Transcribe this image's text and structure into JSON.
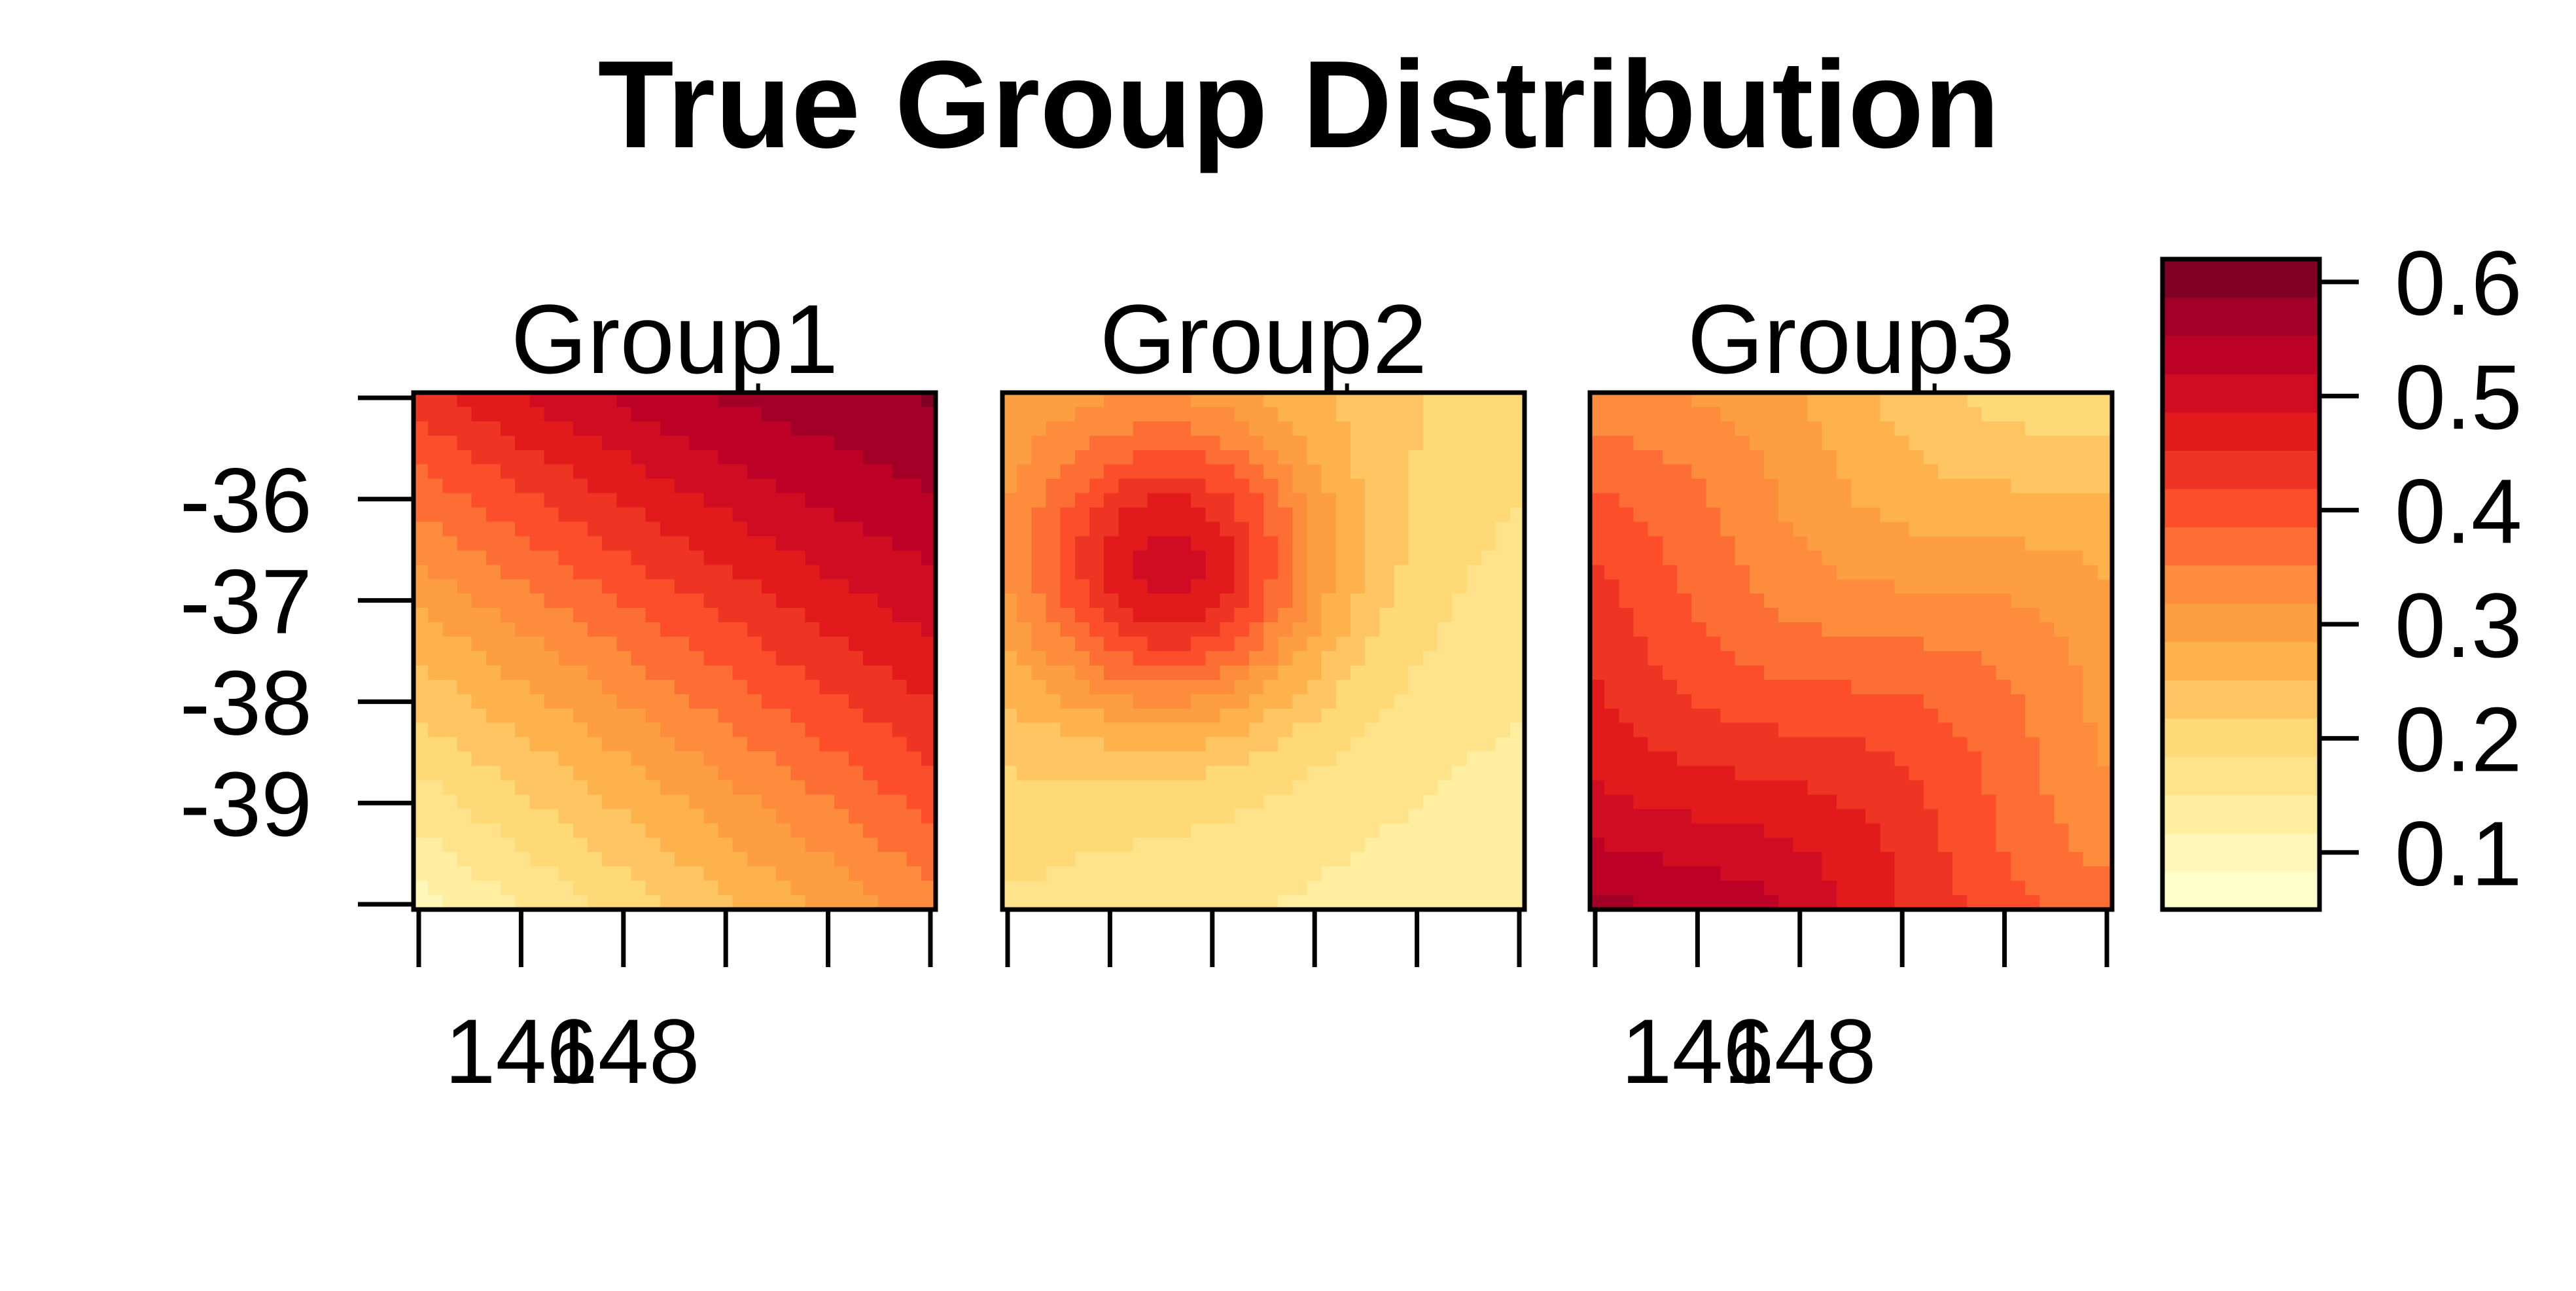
{
  "chart_data": {
    "type": "heatmap",
    "title": "True Group Distribution",
    "xlabel": "",
    "ylabel": "",
    "panels": [
      {
        "name": "Group1",
        "x_ticks": [
          "146",
          "148"
        ],
        "y_ticks": [
          "-36",
          "-37",
          "-38",
          "-39"
        ],
        "field": {
          "x_range": [
            0,
            1
          ],
          "y_range": [
            0,
            1
          ],
          "note_center": [
            0.62,
            0.0
          ],
          "corner_values": {
            "top_left": 0.44,
            "top_right": 0.6,
            "bottom_left": 0.1,
            "bottom_right": 0.34
          }
        }
      },
      {
        "name": "Group2",
        "x_ticks": [],
        "y_ticks": [],
        "field": {
          "peak_value": 0.5,
          "peak_x": 0.32,
          "peak_y": 0.33,
          "corner_values": {
            "top_left": 0.28,
            "top_right": 0.2,
            "bottom_left": 0.18,
            "bottom_right": 0.12
          }
        }
      },
      {
        "name": "Group3",
        "x_ticks": [
          "146",
          "148"
        ],
        "y_ticks": [],
        "field": {
          "corner_values": {
            "top_left": 0.32,
            "top_right": 0.2,
            "bottom_left": 0.57,
            "bottom_right": 0.38
          }
        }
      }
    ],
    "legend": {
      "ticks": [
        "0.1",
        "0.2",
        "0.3",
        "0.4",
        "0.5",
        "0.6"
      ],
      "range": [
        0.05,
        0.62
      ],
      "palette": [
        "#FFFFCC",
        "#FFF6B9",
        "#FFEDA0",
        "#FEE38A",
        "#FED976",
        "#FEC562",
        "#FEB24C",
        "#FD9E43",
        "#FD8D3C",
        "#FC6E33",
        "#FC4E2A",
        "#EE3524",
        "#E31A1C",
        "#CF0C22",
        "#BD0026",
        "#A20026",
        "#800026"
      ]
    }
  }
}
